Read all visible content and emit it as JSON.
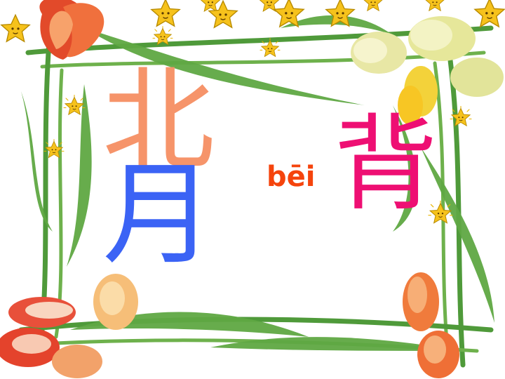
{
  "slide": {
    "component_top": "北",
    "component_bottom": "月",
    "pinyin": "bēi",
    "character": "背"
  },
  "colors": {
    "component_top": "#f6946a",
    "component_bottom": "#3b63f5",
    "pinyin": "#f5440d",
    "character": "#ee0f73",
    "background": "#ffffff"
  },
  "decor": {
    "frame": "tulip-flower-frame",
    "stars": "star-icon"
  }
}
